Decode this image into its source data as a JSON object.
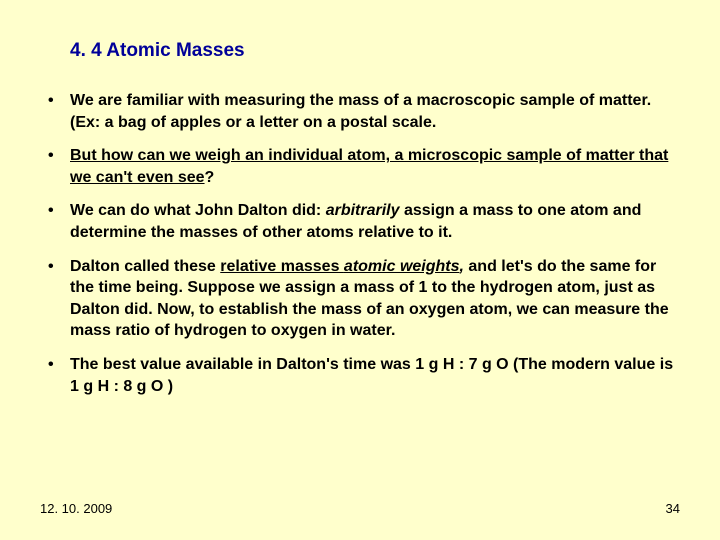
{
  "title": "4. 4 Atomic Masses",
  "bullets": {
    "b1": "We are familiar with measuring the mass of a macroscopic sample of matter. (Ex: a bag of apples or a letter on a postal scale.",
    "b2": "But how can we weigh an individual atom, a microscopic sample of matter that we can't even see",
    "b2q": "?",
    "b3a": "We can do what John Dalton did: ",
    "b3b": "arbitrarily",
    "b3c": " assign a mass to one atom and determine the masses of other atoms relative to it.",
    "b4a": "Dalton called these ",
    "b4b": "relative masses ",
    "b4c": "atomic weights",
    "b4comma": ",",
    "b4d": " and let's do the same for the time being. Suppose we assign a mass of 1 to the hydrogen atom, just as Dalton did. Now, to establish the mass of an oxygen atom, we can measure the mass ratio of hydrogen to oxygen in water.",
    "b5": "The best value available in Dalton's time was  1 g H : 7 g O  (The modern value is 1 g H : 8 g O )"
  },
  "footer": {
    "date": "12. 10. 2009",
    "page": "34"
  },
  "colors": {
    "background": "#ffffcc",
    "title": "#000099",
    "text": "#000000"
  }
}
